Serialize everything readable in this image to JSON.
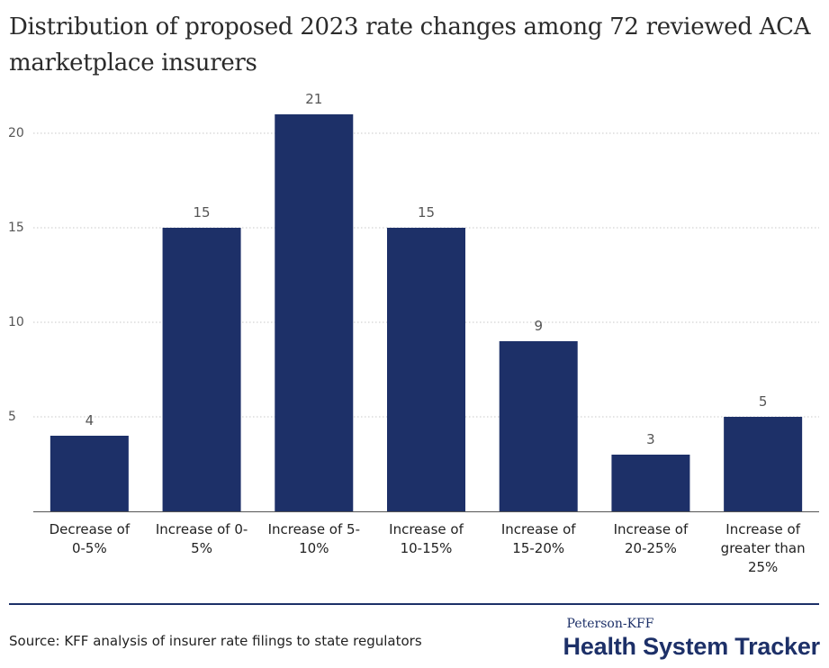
{
  "title": "Distribution of proposed 2023 rate changes among 72 reviewed ACA marketplace insurers",
  "source": "Source: KFF analysis of insurer rate filings to state regulators",
  "logo": {
    "top": "Peterson-KFF",
    "main": "Health System Tracker"
  },
  "colors": {
    "bar": "#1d3068",
    "grid": "#c8c8c8",
    "text": "#333333"
  },
  "chart_data": {
    "type": "bar",
    "categories": [
      [
        "Decrease of",
        "0-5%"
      ],
      [
        "Increase of 0-",
        "5%"
      ],
      [
        "Increase of 5-",
        "10%"
      ],
      [
        "Increase of",
        "10-15%"
      ],
      [
        "Increase of",
        "15-20%"
      ],
      [
        "Increase of",
        "20-25%"
      ],
      [
        "Increase of",
        "greater than",
        "25%"
      ]
    ],
    "values": [
      4,
      15,
      21,
      15,
      9,
      3,
      5
    ],
    "yticks": [
      5,
      10,
      15,
      20
    ],
    "ylim": [
      0,
      22.5
    ],
    "grid": true,
    "grid_style": "dotted",
    "data_labels": true,
    "title": "Distribution of proposed 2023 rate changes among 72 reviewed ACA marketplace insurers",
    "xlabel": "",
    "ylabel": ""
  }
}
